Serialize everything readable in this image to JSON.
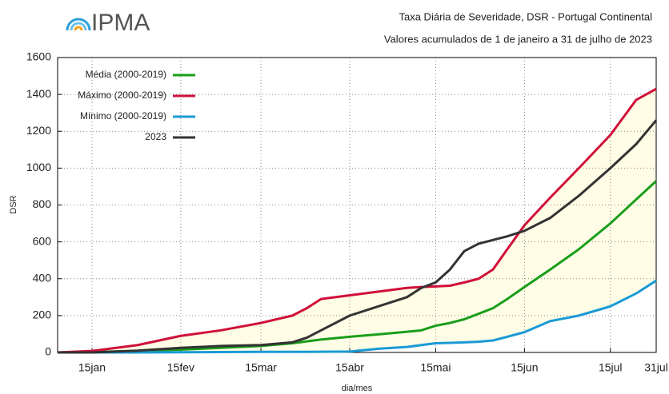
{
  "chart_data": {
    "type": "line",
    "logo": "IPMA",
    "title": "Taxa Diária de Severidade, DSR - Portugal Continental",
    "subtitle": "Valores acumulados de 1 de janeiro a 31 de julho de 2023",
    "x_label": "dia/mes",
    "y_label": "DSR",
    "x": [
      3,
      15,
      31,
      46,
      60,
      74,
      85,
      90,
      95,
      105,
      115,
      125,
      130,
      135,
      140,
      145,
      150,
      155,
      160,
      166,
      175,
      185,
      196,
      205,
      212
    ],
    "series": [
      {
        "name": "Média (2000-2019)",
        "color": "#1a9e1a",
        "values": [
          0,
          3,
          8,
          15,
          25,
          35,
          50,
          60,
          70,
          85,
          98,
          112,
          120,
          145,
          160,
          180,
          210,
          240,
          290,
          355,
          450,
          560,
          700,
          830,
          930
        ]
      },
      {
        "name": "Máximo (2000-2019)",
        "color": "#d0103a",
        "values": [
          0,
          8,
          40,
          90,
          120,
          160,
          200,
          240,
          290,
          310,
          330,
          350,
          355,
          358,
          362,
          380,
          400,
          450,
          560,
          690,
          840,
          1000,
          1180,
          1370,
          1430
        ]
      },
      {
        "name": "Mínimo (2000-2019)",
        "color": "#1a9ad6",
        "values": [
          0,
          0,
          0,
          1,
          2,
          3,
          3,
          3,
          4,
          5,
          20,
          30,
          40,
          50,
          52,
          55,
          58,
          65,
          85,
          110,
          170,
          200,
          250,
          320,
          390
        ]
      },
      {
        "name": "2023",
        "color": "#333333",
        "values": [
          0,
          0,
          10,
          25,
          35,
          40,
          55,
          80,
          120,
          200,
          250,
          300,
          350,
          380,
          450,
          550,
          590,
          610,
          630,
          660,
          730,
          850,
          1000,
          1130,
          1260
        ]
      }
    ],
    "band_color": "#fffde6",
    "xlim": [
      3,
      212
    ],
    "xticks": [
      {
        "value": 15,
        "label": "15jan"
      },
      {
        "value": 46,
        "label": "15fev"
      },
      {
        "value": 74,
        "label": "15mar"
      },
      {
        "value": 105,
        "label": "15abr"
      },
      {
        "value": 135,
        "label": "15mai"
      },
      {
        "value": 166,
        "label": "15jun"
      },
      {
        "value": 196,
        "label": "15jul"
      },
      {
        "value": 212,
        "label": "31jul"
      }
    ],
    "ylim": [
      0,
      1600
    ],
    "yticks": [
      0,
      200,
      400,
      600,
      800,
      1000,
      1200,
      1400,
      1600
    ],
    "grid": true,
    "legend": "upper-left"
  }
}
